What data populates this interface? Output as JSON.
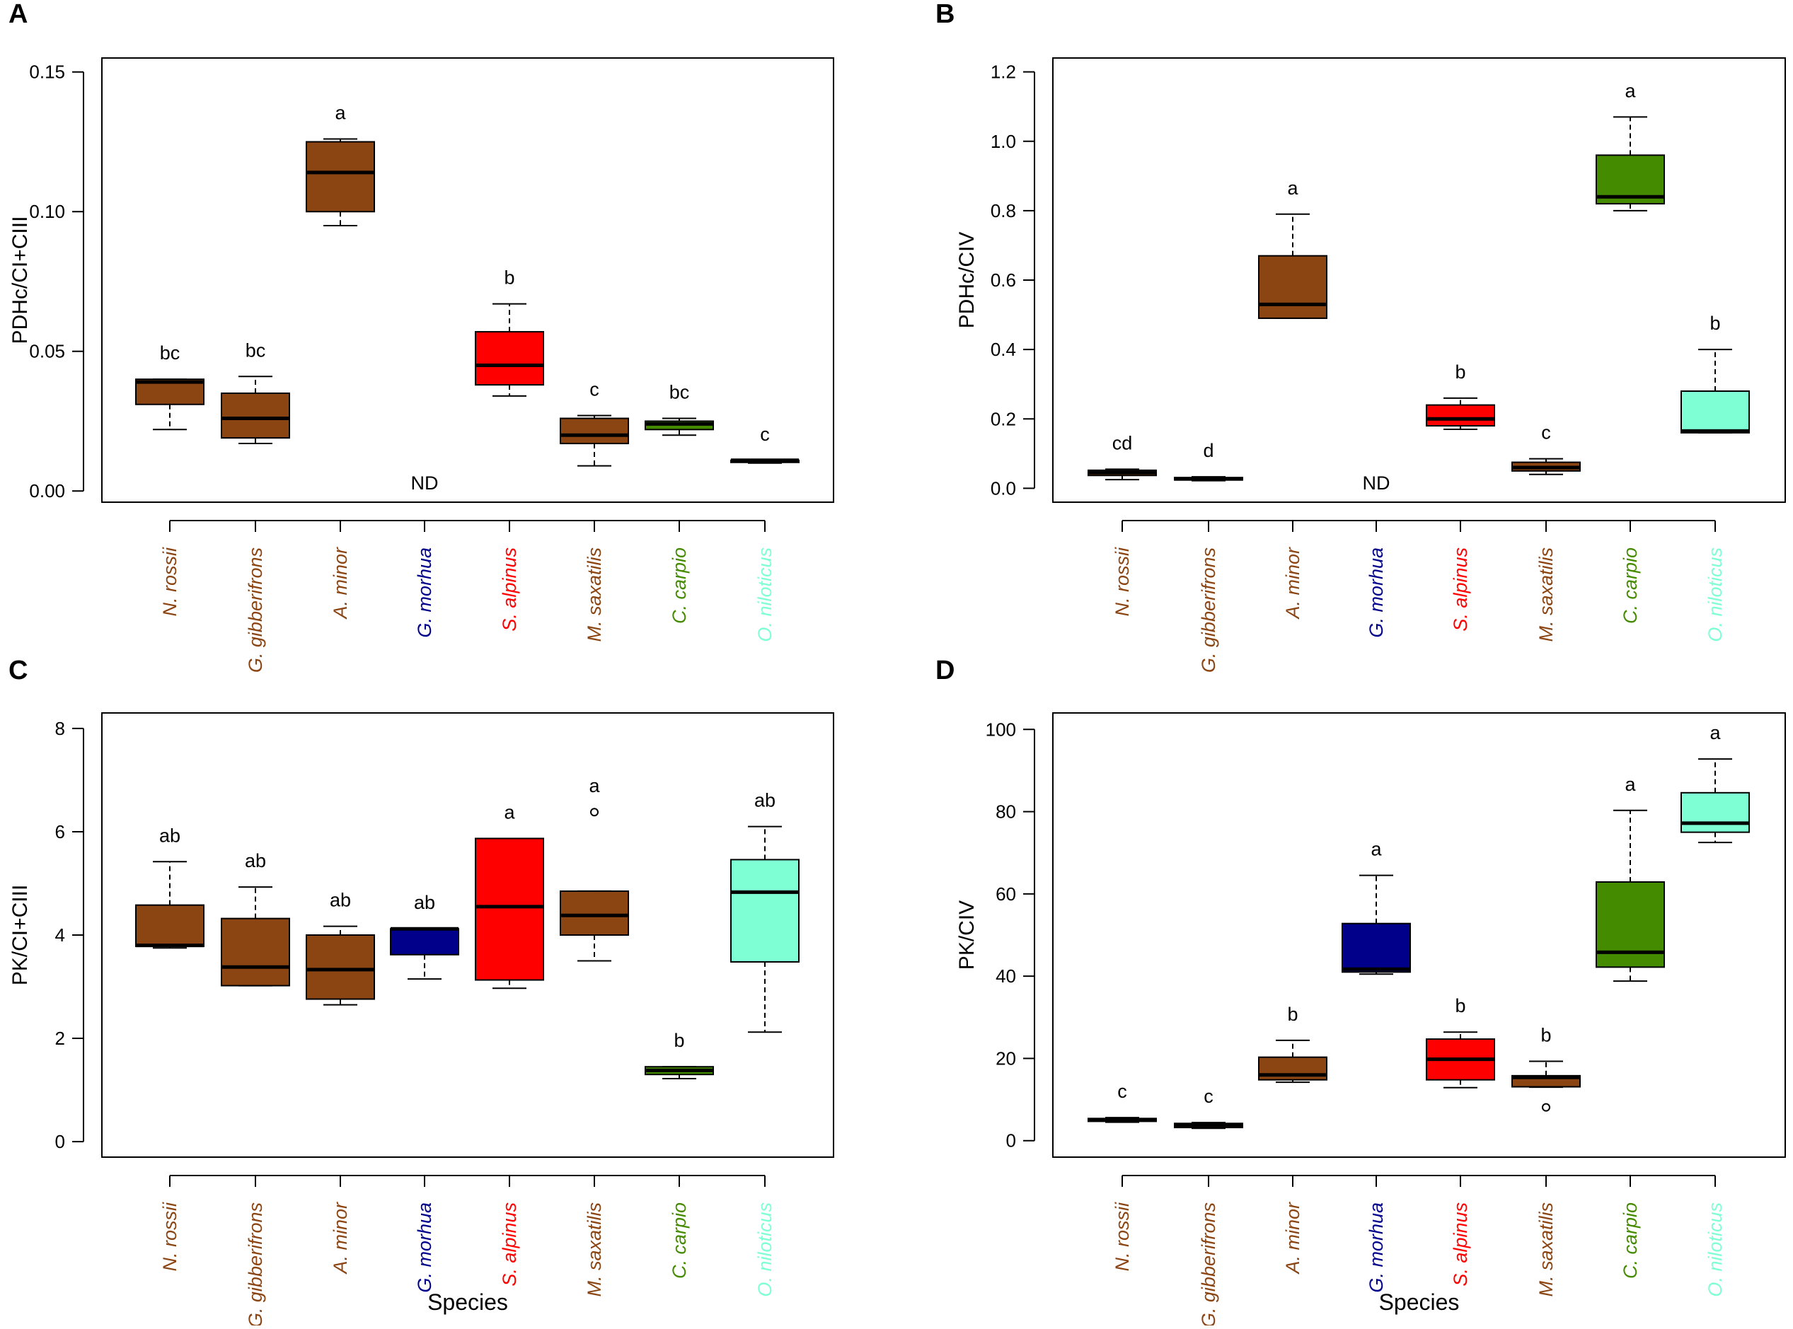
{
  "figure": {
    "species_axis_label": "Species",
    "not_detected_label": "ND"
  },
  "species": [
    {
      "name": "N. rossii",
      "color": "#8B4513"
    },
    {
      "name": "G. gibberifrons",
      "color": "#8B4513"
    },
    {
      "name": "A. minor",
      "color": "#8B4513"
    },
    {
      "name": "G. morhua",
      "color": "#00008B"
    },
    {
      "name": "S. alpinus",
      "color": "#FF0000"
    },
    {
      "name": "M. saxatilis",
      "color": "#8B4513"
    },
    {
      "name": "C. carpio",
      "color": "#458B00"
    },
    {
      "name": "O. niloticus",
      "color": "#7FFFD4"
    }
  ],
  "chart_data": [
    {
      "type": "boxplot",
      "panel": "A",
      "ylabel": "PDHc/CI+CIII",
      "xlabel": "",
      "ylim": [
        -0.004,
        0.155
      ],
      "yticks": [
        0.0,
        0.05,
        0.1,
        0.15
      ],
      "ytick_labels": [
        "0.00",
        "0.05",
        "0.10",
        "0.15"
      ],
      "series": [
        {
          "species": "N. rossii",
          "whisker_low": 0.022,
          "q1": 0.031,
          "median": 0.039,
          "q3": 0.04,
          "whisker_high": 0.04,
          "label": "bc",
          "outliers": []
        },
        {
          "species": "G. gibberifrons",
          "whisker_low": 0.017,
          "q1": 0.019,
          "median": 0.026,
          "q3": 0.035,
          "whisker_high": 0.041,
          "label": "bc",
          "outliers": []
        },
        {
          "species": "A. minor",
          "whisker_low": 0.095,
          "q1": 0.1,
          "median": 0.114,
          "q3": 0.125,
          "whisker_high": 0.126,
          "label": "a",
          "outliers": []
        },
        {
          "species": "G. morhua",
          "nd": true,
          "label": "ND"
        },
        {
          "species": "S. alpinus",
          "whisker_low": 0.034,
          "q1": 0.038,
          "median": 0.045,
          "q3": 0.057,
          "whisker_high": 0.067,
          "label": "b",
          "outliers": []
        },
        {
          "species": "M. saxatilis",
          "whisker_low": 0.009,
          "q1": 0.017,
          "median": 0.02,
          "q3": 0.026,
          "whisker_high": 0.027,
          "label": "c",
          "outliers": []
        },
        {
          "species": "C. carpio",
          "whisker_low": 0.02,
          "q1": 0.022,
          "median": 0.024,
          "q3": 0.025,
          "whisker_high": 0.026,
          "label": "bc",
          "outliers": []
        },
        {
          "species": "O. niloticus",
          "whisker_low": 0.01,
          "q1": 0.011,
          "median": 0.011,
          "q3": 0.011,
          "whisker_high": 0.011,
          "label": "c",
          "outliers": []
        }
      ]
    },
    {
      "type": "boxplot",
      "panel": "B",
      "ylabel": "PDHc/CIV",
      "xlabel": "",
      "ylim": [
        -0.04,
        1.24
      ],
      "yticks": [
        0.0,
        0.2,
        0.4,
        0.6,
        0.8,
        1.0,
        1.2
      ],
      "ytick_labels": [
        "0.0",
        "0.2",
        "0.4",
        "0.6",
        "0.8",
        "1.0",
        "1.2"
      ],
      "series": [
        {
          "species": "N. rossii",
          "whisker_low": 0.025,
          "q1": 0.037,
          "median": 0.045,
          "q3": 0.052,
          "whisker_high": 0.055,
          "label": "cd",
          "outliers": []
        },
        {
          "species": "G. gibberifrons",
          "whisker_low": 0.022,
          "q1": 0.024,
          "median": 0.027,
          "q3": 0.031,
          "whisker_high": 0.033,
          "label": "d",
          "outliers": []
        },
        {
          "species": "A. minor",
          "whisker_low": 0.49,
          "q1": 0.49,
          "median": 0.53,
          "q3": 0.67,
          "whisker_high": 0.79,
          "label": "a",
          "outliers": []
        },
        {
          "species": "G. morhua",
          "nd": true,
          "label": "ND"
        },
        {
          "species": "S. alpinus",
          "whisker_low": 0.17,
          "q1": 0.18,
          "median": 0.2,
          "q3": 0.24,
          "whisker_high": 0.26,
          "label": "b",
          "outliers": []
        },
        {
          "species": "M. saxatilis",
          "whisker_low": 0.04,
          "q1": 0.05,
          "median": 0.06,
          "q3": 0.075,
          "whisker_high": 0.085,
          "label": "c",
          "outliers": []
        },
        {
          "species": "C. carpio",
          "whisker_low": 0.8,
          "q1": 0.82,
          "median": 0.84,
          "q3": 0.96,
          "whisker_high": 1.07,
          "label": "a",
          "outliers": []
        },
        {
          "species": "O. niloticus",
          "whisker_low": 0.16,
          "q1": 0.16,
          "median": 0.165,
          "q3": 0.28,
          "whisker_high": 0.4,
          "label": "b",
          "outliers": []
        }
      ]
    },
    {
      "type": "boxplot",
      "panel": "C",
      "ylabel": "PK/CI+CIII",
      "xlabel": "Species",
      "ylim": [
        -0.3,
        8.3
      ],
      "yticks": [
        0,
        2,
        4,
        6,
        8
      ],
      "ytick_labels": [
        "0",
        "2",
        "4",
        "6",
        "8"
      ],
      "series": [
        {
          "species": "N. rossii",
          "whisker_low": 3.75,
          "q1": 3.78,
          "median": 3.8,
          "q3": 4.58,
          "whisker_high": 5.42,
          "label": "ab",
          "outliers": []
        },
        {
          "species": "G. gibberifrons",
          "whisker_low": 3.02,
          "q1": 3.02,
          "median": 3.38,
          "q3": 4.32,
          "whisker_high": 4.93,
          "label": "ab",
          "outliers": []
        },
        {
          "species": "A. minor",
          "whisker_low": 2.65,
          "q1": 2.76,
          "median": 3.33,
          "q3": 4.0,
          "whisker_high": 4.17,
          "label": "ab",
          "outliers": []
        },
        {
          "species": "G. morhua",
          "whisker_low": 3.15,
          "q1": 3.62,
          "median": 4.12,
          "q3": 4.12,
          "whisker_high": 4.12,
          "label": "ab",
          "outliers": []
        },
        {
          "species": "S. alpinus",
          "whisker_low": 2.97,
          "q1": 3.13,
          "median": 4.55,
          "q3": 5.87,
          "whisker_high": 5.87,
          "label": "a",
          "outliers": []
        },
        {
          "species": "M. saxatilis",
          "whisker_low": 3.5,
          "q1": 4.0,
          "median": 4.38,
          "q3": 4.85,
          "whisker_high": 4.85,
          "label": "a",
          "outliers": [
            6.38
          ]
        },
        {
          "species": "C. carpio",
          "whisker_low": 1.22,
          "q1": 1.3,
          "median": 1.38,
          "q3": 1.45,
          "whisker_high": 1.45,
          "label": "b",
          "outliers": []
        },
        {
          "species": "O. niloticus",
          "whisker_low": 2.12,
          "q1": 3.48,
          "median": 4.83,
          "q3": 5.46,
          "whisker_high": 6.1,
          "label": "ab",
          "outliers": []
        }
      ]
    },
    {
      "type": "boxplot",
      "panel": "D",
      "ylabel": "PK/CIV",
      "xlabel": "Species",
      "ylim": [
        -4,
        104
      ],
      "yticks": [
        0,
        20,
        40,
        60,
        80,
        100
      ],
      "ytick_labels": [
        "0",
        "20",
        "40",
        "60",
        "80",
        "100"
      ],
      "series": [
        {
          "species": "N. rossii",
          "whisker_low": 4.5,
          "q1": 4.7,
          "median": 5.0,
          "q3": 5.4,
          "whisker_high": 5.6,
          "label": "c",
          "outliers": []
        },
        {
          "species": "G. gibberifrons",
          "whisker_low": 3.0,
          "q1": 3.2,
          "median": 3.8,
          "q3": 4.2,
          "whisker_high": 4.4,
          "label": "c",
          "outliers": []
        },
        {
          "species": "A. minor",
          "whisker_low": 14.2,
          "q1": 14.8,
          "median": 16.0,
          "q3": 20.3,
          "whisker_high": 24.4,
          "label": "b",
          "outliers": []
        },
        {
          "species": "G. morhua",
          "whisker_low": 40.5,
          "q1": 41.0,
          "median": 41.7,
          "q3": 52.8,
          "whisker_high": 64.5,
          "label": "a",
          "outliers": []
        },
        {
          "species": "S. alpinus",
          "whisker_low": 12.9,
          "q1": 14.8,
          "median": 19.8,
          "q3": 24.7,
          "whisker_high": 26.4,
          "label": "b",
          "outliers": []
        },
        {
          "species": "M. saxatilis",
          "whisker_low": 13.0,
          "q1": 13.1,
          "median": 15.4,
          "q3": 15.8,
          "whisker_high": 19.3,
          "label": "b",
          "outliers": [
            8.1
          ]
        },
        {
          "species": "C. carpio",
          "whisker_low": 38.8,
          "q1": 42.2,
          "median": 45.8,
          "q3": 62.9,
          "whisker_high": 80.3,
          "label": "a",
          "outliers": []
        },
        {
          "species": "O. niloticus",
          "whisker_low": 72.5,
          "q1": 75.0,
          "median": 77.2,
          "q3": 84.6,
          "whisker_high": 92.8,
          "label": "a",
          "outliers": []
        }
      ]
    }
  ]
}
